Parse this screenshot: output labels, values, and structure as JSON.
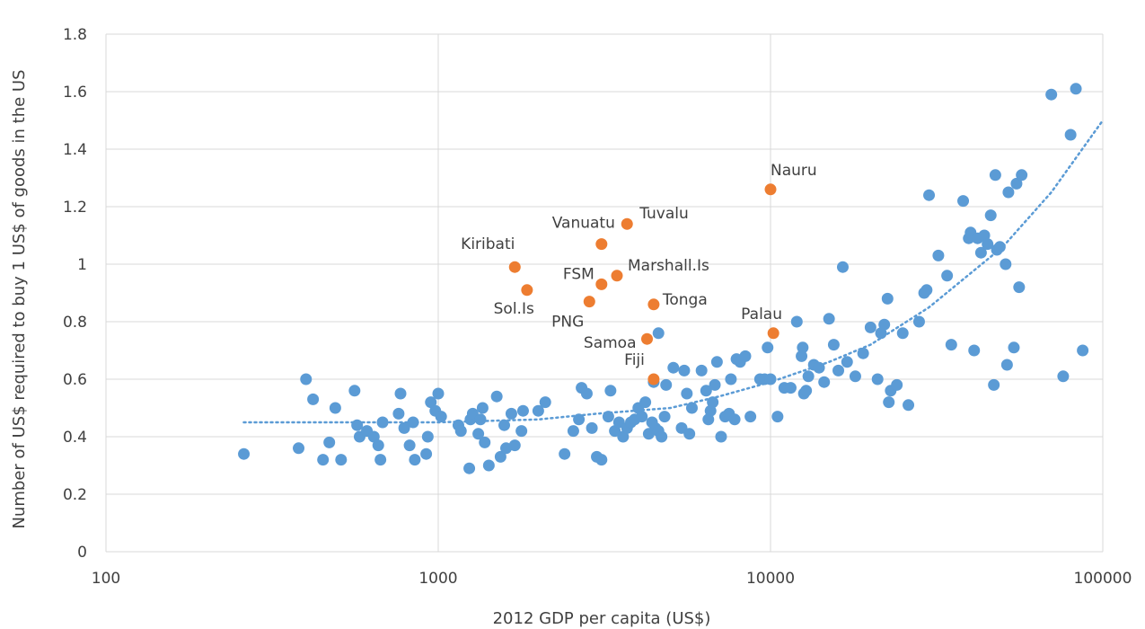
{
  "chart_data": {
    "type": "scatter",
    "title": "",
    "xlabel": "2012 GDP per capita (US$)",
    "ylabel": "Number of US$ required to buy 1 US$ of goods in the US",
    "x_scale": "log",
    "xlim": [
      100,
      100000
    ],
    "ylim": [
      0,
      1.8
    ],
    "x_ticks": [
      100,
      1000,
      10000,
      100000
    ],
    "x_tick_labels": [
      "100",
      "1000",
      "10000",
      "100000"
    ],
    "y_ticks": [
      0,
      0.2,
      0.4,
      0.6,
      0.8,
      1.0,
      1.2,
      1.4,
      1.6,
      1.8
    ],
    "y_tick_labels": [
      "0",
      "0.2",
      "0.4",
      "0.6",
      "0.8",
      "1",
      "1.2",
      "1.4",
      "1.6",
      "1.8"
    ],
    "grid": true,
    "legend": "none",
    "colors": {
      "countries": "#5b9bd5",
      "pacific": "#ed7d31",
      "trend": "#5b9bd5",
      "grid": "#d9d9d9",
      "text": "#404040"
    },
    "series": [
      {
        "points": [
          [
            260,
            0.34
          ],
          [
            380,
            0.36
          ],
          [
            400,
            0.6
          ],
          [
            420,
            0.53
          ],
          [
            450,
            0.32
          ],
          [
            470,
            0.38
          ],
          [
            490,
            0.5
          ],
          [
            510,
            0.32
          ],
          [
            560,
            0.56
          ],
          [
            570,
            0.44
          ],
          [
            580,
            0.4
          ],
          [
            610,
            0.42
          ],
          [
            640,
            0.4
          ],
          [
            660,
            0.37
          ],
          [
            670,
            0.32
          ],
          [
            680,
            0.45
          ],
          [
            760,
            0.48
          ],
          [
            770,
            0.55
          ],
          [
            790,
            0.43
          ],
          [
            820,
            0.37
          ],
          [
            840,
            0.45
          ],
          [
            850,
            0.32
          ],
          [
            920,
            0.34
          ],
          [
            930,
            0.4
          ],
          [
            950,
            0.52
          ],
          [
            980,
            0.49
          ],
          [
            1000,
            0.55
          ],
          [
            1020,
            0.47
          ],
          [
            1150,
            0.44
          ],
          [
            1170,
            0.42
          ],
          [
            1240,
            0.29
          ],
          [
            1250,
            0.46
          ],
          [
            1270,
            0.48
          ],
          [
            1320,
            0.41
          ],
          [
            1340,
            0.46
          ],
          [
            1360,
            0.5
          ],
          [
            1380,
            0.38
          ],
          [
            1420,
            0.3
          ],
          [
            1500,
            0.54
          ],
          [
            1540,
            0.33
          ],
          [
            1580,
            0.44
          ],
          [
            1600,
            0.36
          ],
          [
            1660,
            0.48
          ],
          [
            1700,
            0.37
          ],
          [
            1780,
            0.42
          ],
          [
            1800,
            0.49
          ],
          [
            2000,
            0.49
          ],
          [
            2100,
            0.52
          ],
          [
            2400,
            0.34
          ],
          [
            2550,
            0.42
          ],
          [
            2650,
            0.46
          ],
          [
            2700,
            0.57
          ],
          [
            2800,
            0.55
          ],
          [
            2900,
            0.43
          ],
          [
            3000,
            0.33
          ],
          [
            3100,
            0.32
          ],
          [
            3250,
            0.47
          ],
          [
            3300,
            0.56
          ],
          [
            3400,
            0.42
          ],
          [
            3500,
            0.45
          ],
          [
            3600,
            0.4
          ],
          [
            3700,
            0.43
          ],
          [
            3800,
            0.45
          ],
          [
            3900,
            0.46
          ],
          [
            4000,
            0.5
          ],
          [
            4100,
            0.47
          ],
          [
            4200,
            0.52
          ],
          [
            4300,
            0.41
          ],
          [
            4400,
            0.45
          ],
          [
            4500,
            0.43
          ],
          [
            4600,
            0.42
          ],
          [
            4700,
            0.4
          ],
          [
            4800,
            0.47
          ],
          [
            4850,
            0.58
          ],
          [
            4450,
            0.59
          ],
          [
            4600,
            0.76
          ],
          [
            5100,
            0.64
          ],
          [
            5400,
            0.43
          ],
          [
            5500,
            0.63
          ],
          [
            5600,
            0.55
          ],
          [
            5700,
            0.41
          ],
          [
            5800,
            0.5
          ],
          [
            6200,
            0.63
          ],
          [
            6400,
            0.56
          ],
          [
            6500,
            0.46
          ],
          [
            6600,
            0.49
          ],
          [
            6700,
            0.52
          ],
          [
            6800,
            0.58
          ],
          [
            6900,
            0.66
          ],
          [
            7100,
            0.4
          ],
          [
            7300,
            0.47
          ],
          [
            7500,
            0.48
          ],
          [
            7600,
            0.6
          ],
          [
            7800,
            0.46
          ],
          [
            7900,
            0.67
          ],
          [
            8100,
            0.66
          ],
          [
            8400,
            0.68
          ],
          [
            8700,
            0.47
          ],
          [
            9300,
            0.6
          ],
          [
            9600,
            0.6
          ],
          [
            9800,
            0.71
          ],
          [
            10000,
            0.6
          ],
          [
            10500,
            0.47
          ],
          [
            11000,
            0.57
          ],
          [
            11500,
            0.57
          ],
          [
            12000,
            0.8
          ],
          [
            12400,
            0.68
          ],
          [
            12500,
            0.71
          ],
          [
            12600,
            0.55
          ],
          [
            12800,
            0.56
          ],
          [
            13000,
            0.61
          ],
          [
            13500,
            0.65
          ],
          [
            14000,
            0.64
          ],
          [
            14500,
            0.59
          ],
          [
            15000,
            0.81
          ],
          [
            15500,
            0.72
          ],
          [
            16000,
            0.63
          ],
          [
            16500,
            0.99
          ],
          [
            17000,
            0.66
          ],
          [
            18000,
            0.61
          ],
          [
            19000,
            0.69
          ],
          [
            20000,
            0.78
          ],
          [
            21000,
            0.6
          ],
          [
            21500,
            0.76
          ],
          [
            22000,
            0.79
          ],
          [
            22500,
            0.88
          ],
          [
            22700,
            0.52
          ],
          [
            23000,
            0.56
          ],
          [
            24000,
            0.58
          ],
          [
            25000,
            0.76
          ],
          [
            26000,
            0.51
          ],
          [
            28000,
            0.8
          ],
          [
            29000,
            0.9
          ],
          [
            29500,
            0.91
          ],
          [
            30000,
            1.24
          ],
          [
            32000,
            1.03
          ],
          [
            34000,
            0.96
          ],
          [
            35000,
            0.72
          ],
          [
            38000,
            1.22
          ],
          [
            39500,
            1.09
          ],
          [
            40000,
            1.11
          ],
          [
            41000,
            0.7
          ],
          [
            42000,
            1.09
          ],
          [
            43000,
            1.04
          ],
          [
            44000,
            1.1
          ],
          [
            45000,
            1.07
          ],
          [
            46000,
            1.17
          ],
          [
            47000,
            0.58
          ],
          [
            47500,
            1.31
          ],
          [
            48000,
            1.05
          ],
          [
            49000,
            1.06
          ],
          [
            51000,
            1.0
          ],
          [
            51500,
            0.65
          ],
          [
            52000,
            1.25
          ],
          [
            54000,
            0.71
          ],
          [
            55000,
            1.28
          ],
          [
            56000,
            0.92
          ],
          [
            57000,
            1.31
          ],
          [
            70000,
            1.59
          ],
          [
            76000,
            0.61
          ],
          [
            80000,
            1.45
          ],
          [
            83000,
            1.61
          ],
          [
            87000,
            0.7
          ]
        ]
      },
      {
        "points": [
          [
            10000,
            1.26
          ],
          [
            3700,
            1.14
          ],
          [
            3100,
            1.07
          ],
          [
            1700,
            0.99
          ],
          [
            3450,
            0.96
          ],
          [
            3100,
            0.93
          ],
          [
            1850,
            0.91
          ],
          [
            2850,
            0.87
          ],
          [
            4450,
            0.86
          ],
          [
            10200,
            0.76
          ],
          [
            4250,
            0.74
          ],
          [
            4450,
            0.6
          ]
        ],
        "labels": [
          "Nauru",
          "Tuvalu",
          "Vanuatu",
          "Kiribati",
          "Marshall.Is",
          "FSM",
          "Sol.Is",
          "PNG",
          "Tonga",
          "Palau",
          "Samoa",
          "Fiji"
        ]
      }
    ],
    "trendline": {
      "style": "dotted",
      "points": [
        [
          260,
          0.45
        ],
        [
          500,
          0.45
        ],
        [
          1000,
          0.45
        ],
        [
          2000,
          0.46
        ],
        [
          3000,
          0.48
        ],
        [
          5000,
          0.5
        ],
        [
          7000,
          0.54
        ],
        [
          10000,
          0.59
        ],
        [
          15000,
          0.66
        ],
        [
          20000,
          0.72
        ],
        [
          30000,
          0.85
        ],
        [
          50000,
          1.06
        ],
        [
          70000,
          1.25
        ],
        [
          100000,
          1.5
        ]
      ]
    }
  }
}
